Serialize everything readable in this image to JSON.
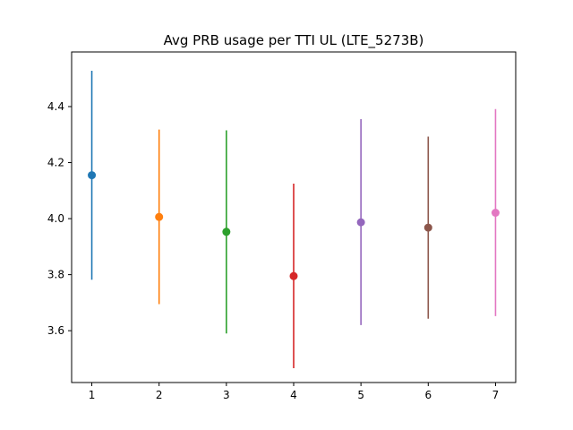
{
  "chart_data": {
    "type": "errorbar",
    "title": "Avg PRB usage per TTI UL (LTE_5273B)",
    "xlabel": "",
    "ylabel": "",
    "xlim": [
      0.7,
      7.3
    ],
    "ylim": [
      3.415,
      4.595
    ],
    "xticks": [
      1,
      2,
      3,
      4,
      5,
      6,
      7
    ],
    "xtick_labels": [
      "1",
      "2",
      "3",
      "4",
      "5",
      "6",
      "7"
    ],
    "yticks": [
      3.6,
      3.8,
      4.0,
      4.2,
      4.4
    ],
    "ytick_labels": [
      "3.6",
      "3.8",
      "4.0",
      "4.2",
      "4.4"
    ],
    "grid": false,
    "points": [
      {
        "x": 1,
        "y": 4.155,
        "low": 3.782,
        "high": 4.528,
        "color": "#1f77b4"
      },
      {
        "x": 2,
        "y": 4.006,
        "low": 3.695,
        "high": 4.318,
        "color": "#ff7f0e"
      },
      {
        "x": 3,
        "y": 3.953,
        "low": 3.59,
        "high": 4.315,
        "color": "#2ca02c"
      },
      {
        "x": 4,
        "y": 3.795,
        "low": 3.466,
        "high": 4.125,
        "color": "#d62728"
      },
      {
        "x": 5,
        "y": 3.987,
        "low": 3.62,
        "high": 4.355,
        "color": "#9467bd"
      },
      {
        "x": 6,
        "y": 3.968,
        "low": 3.643,
        "high": 4.293,
        "color": "#8c564b"
      },
      {
        "x": 7,
        "y": 4.021,
        "low": 3.652,
        "high": 4.391,
        "color": "#e377c2"
      }
    ]
  }
}
